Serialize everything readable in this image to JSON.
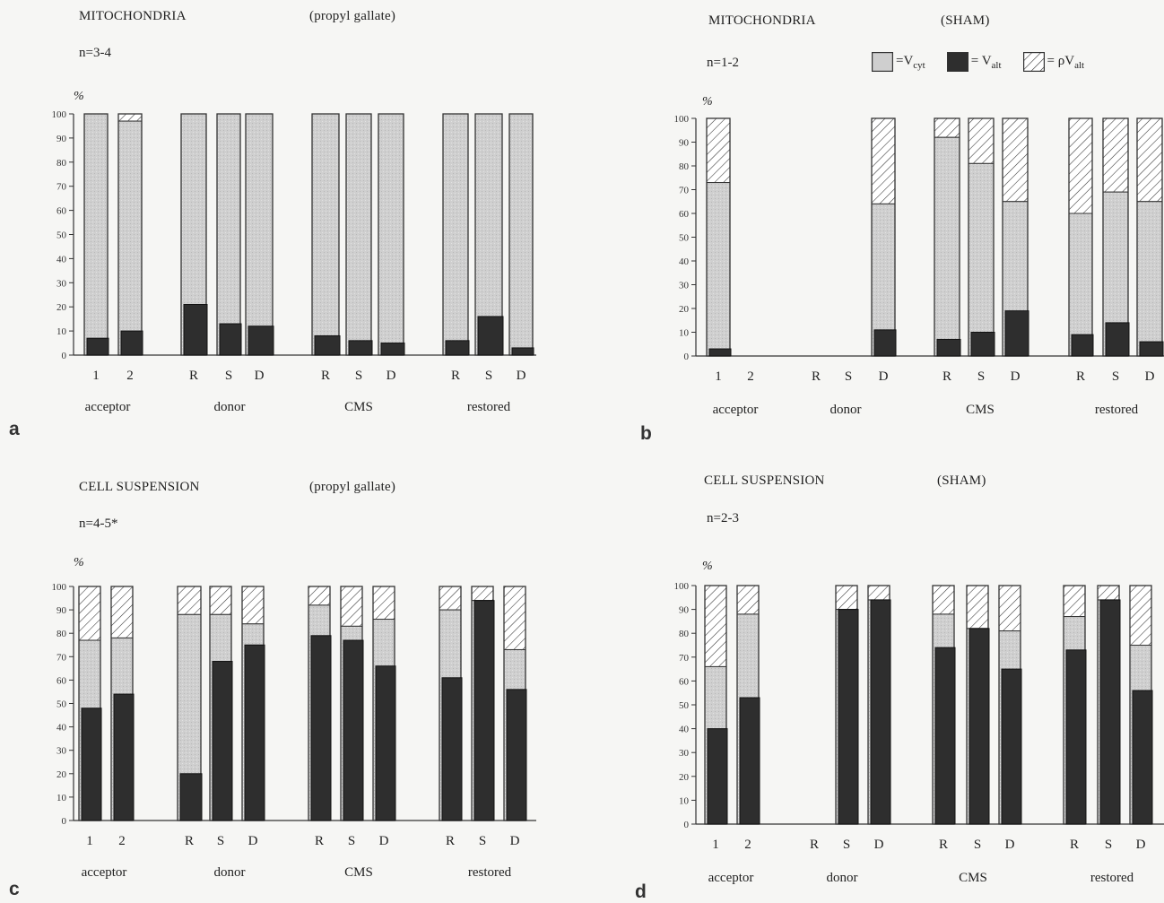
{
  "legend": {
    "vcyt": {
      "prefix": "=V",
      "sub": "cyt"
    },
    "valt": {
      "prefix": "= V",
      "sub": "alt"
    },
    "rho_valt": {
      "prefix": "= ρV",
      "sub": "alt"
    }
  },
  "colors": {
    "vcyt": "#cfcfcf",
    "valt": "#2e2e2e",
    "hatch": "#ffffff",
    "stroke": "#333333"
  },
  "chart_data": [
    {
      "letter": "a",
      "title": "MITOCHONDRIA",
      "subtitle": "(propyl gallate)",
      "n_label": "n=3-4",
      "ylabel": "%",
      "type": "bar",
      "stacked": true,
      "ylim": [
        0,
        100
      ],
      "yticks": [
        0,
        10,
        20,
        30,
        40,
        50,
        60,
        70,
        80,
        90,
        100
      ],
      "groups": [
        {
          "label": "acceptor",
          "bars": [
            {
              "tick": "1",
              "valt": 7,
              "vcyt_top": 100,
              "total": 100
            },
            {
              "tick": "2",
              "valt": 10,
              "vcyt_top": 97,
              "total": 100
            }
          ]
        },
        {
          "label": "donor",
          "bars": [
            {
              "tick": "R",
              "valt": 21,
              "vcyt_top": 100,
              "total": 100
            },
            {
              "tick": "S",
              "valt": 13,
              "vcyt_top": 100,
              "total": 100
            },
            {
              "tick": "D",
              "valt": 12,
              "vcyt_top": 100,
              "total": 100
            }
          ]
        },
        {
          "label": "CMS",
          "bars": [
            {
              "tick": "R",
              "valt": 8,
              "vcyt_top": 100,
              "total": 100
            },
            {
              "tick": "S",
              "valt": 6,
              "vcyt_top": 100,
              "total": 100
            },
            {
              "tick": "D",
              "valt": 5,
              "vcyt_top": 100,
              "total": 100
            }
          ]
        },
        {
          "label": "restored",
          "bars": [
            {
              "tick": "R",
              "valt": 6,
              "vcyt_top": 100,
              "total": 100
            },
            {
              "tick": "S",
              "valt": 16,
              "vcyt_top": 100,
              "total": 100
            },
            {
              "tick": "D",
              "valt": 3,
              "vcyt_top": 100,
              "total": 100
            }
          ]
        }
      ]
    },
    {
      "letter": "b",
      "title": "MITOCHONDRIA",
      "subtitle": "(SHAM)",
      "n_label": "n=1-2",
      "ylabel": "%",
      "type": "bar",
      "stacked": true,
      "ylim": [
        0,
        100
      ],
      "yticks": [
        0,
        10,
        20,
        30,
        40,
        50,
        60,
        70,
        80,
        90,
        100
      ],
      "groups": [
        {
          "label": "acceptor",
          "bars": [
            {
              "tick": "1",
              "valt": 3,
              "vcyt_top": 73,
              "total": 100
            },
            {
              "tick": "2",
              "valt": 0,
              "vcyt_top": 0,
              "total": 0
            }
          ]
        },
        {
          "label": "donor",
          "bars": [
            {
              "tick": "R",
              "valt": 0,
              "vcyt_top": 0,
              "total": 0
            },
            {
              "tick": "S",
              "valt": 0,
              "vcyt_top": 0,
              "total": 0
            },
            {
              "tick": "D",
              "valt": 11,
              "vcyt_top": 64,
              "total": 100
            }
          ]
        },
        {
          "label": "CMS",
          "bars": [
            {
              "tick": "R",
              "valt": 7,
              "vcyt_top": 92,
              "total": 100
            },
            {
              "tick": "S",
              "valt": 10,
              "vcyt_top": 81,
              "total": 100
            },
            {
              "tick": "D",
              "valt": 19,
              "vcyt_top": 65,
              "total": 100
            }
          ]
        },
        {
          "label": "restored",
          "bars": [
            {
              "tick": "R",
              "valt": 9,
              "vcyt_top": 60,
              "total": 100
            },
            {
              "tick": "S",
              "valt": 14,
              "vcyt_top": 69,
              "total": 100
            },
            {
              "tick": "D",
              "valt": 6,
              "vcyt_top": 65,
              "total": 100
            }
          ]
        }
      ]
    },
    {
      "letter": "c",
      "title": "CELL SUSPENSION",
      "subtitle": "(propyl gallate)",
      "n_label": "n=4-5*",
      "ylabel": "%",
      "type": "bar",
      "stacked": true,
      "ylim": [
        0,
        100
      ],
      "yticks": [
        0,
        10,
        20,
        30,
        40,
        50,
        60,
        70,
        80,
        90,
        100
      ],
      "groups": [
        {
          "label": "acceptor",
          "bars": [
            {
              "tick": "1",
              "valt": 48,
              "vcyt_top": 77,
              "total": 100
            },
            {
              "tick": "2",
              "valt": 54,
              "vcyt_top": 78,
              "total": 100
            }
          ]
        },
        {
          "label": "donor",
          "bars": [
            {
              "tick": "R",
              "valt": 20,
              "vcyt_top": 88,
              "total": 100
            },
            {
              "tick": "S",
              "valt": 68,
              "vcyt_top": 88,
              "total": 100
            },
            {
              "tick": "D",
              "valt": 75,
              "vcyt_top": 84,
              "total": 100
            }
          ]
        },
        {
          "label": "CMS",
          "bars": [
            {
              "tick": "R",
              "valt": 79,
              "vcyt_top": 92,
              "total": 100
            },
            {
              "tick": "S",
              "valt": 77,
              "vcyt_top": 83,
              "total": 100
            },
            {
              "tick": "D",
              "valt": 66,
              "vcyt_top": 86,
              "total": 100
            }
          ]
        },
        {
          "label": "restored",
          "bars": [
            {
              "tick": "R",
              "valt": 61,
              "vcyt_top": 90,
              "total": 100
            },
            {
              "tick": "S",
              "valt": 94,
              "vcyt_top": 94,
              "total": 100
            },
            {
              "tick": "D",
              "valt": 56,
              "vcyt_top": 73,
              "total": 100
            }
          ]
        }
      ]
    },
    {
      "letter": "d",
      "title": "CELL SUSPENSION",
      "subtitle": "(SHAM)",
      "n_label": "n=2-3",
      "ylabel": "%",
      "type": "bar",
      "stacked": true,
      "ylim": [
        0,
        100
      ],
      "yticks": [
        0,
        10,
        20,
        30,
        40,
        50,
        60,
        70,
        80,
        90,
        100
      ],
      "groups": [
        {
          "label": "acceptor",
          "bars": [
            {
              "tick": "1",
              "valt": 40,
              "vcyt_top": 66,
              "total": 100
            },
            {
              "tick": "2",
              "valt": 53,
              "vcyt_top": 88,
              "total": 100
            }
          ]
        },
        {
          "label": "donor",
          "bars": [
            {
              "tick": "R",
              "valt": 0,
              "vcyt_top": 0,
              "total": 0
            },
            {
              "tick": "S",
              "valt": 90,
              "vcyt_top": 90,
              "total": 100
            },
            {
              "tick": "D",
              "valt": 94,
              "vcyt_top": 94,
              "total": 100
            }
          ]
        },
        {
          "label": "CMS",
          "bars": [
            {
              "tick": "R",
              "valt": 74,
              "vcyt_top": 88,
              "total": 100
            },
            {
              "tick": "S",
              "valt": 82,
              "vcyt_top": 82,
              "total": 100
            },
            {
              "tick": "D",
              "valt": 65,
              "vcyt_top": 81,
              "total": 100
            }
          ]
        },
        {
          "label": "restored",
          "bars": [
            {
              "tick": "R",
              "valt": 73,
              "vcyt_top": 87,
              "total": 100
            },
            {
              "tick": "S",
              "valt": 94,
              "vcyt_top": 94,
              "total": 100
            },
            {
              "tick": "D",
              "valt": 56,
              "vcyt_top": 75,
              "total": 100
            }
          ]
        }
      ]
    }
  ]
}
